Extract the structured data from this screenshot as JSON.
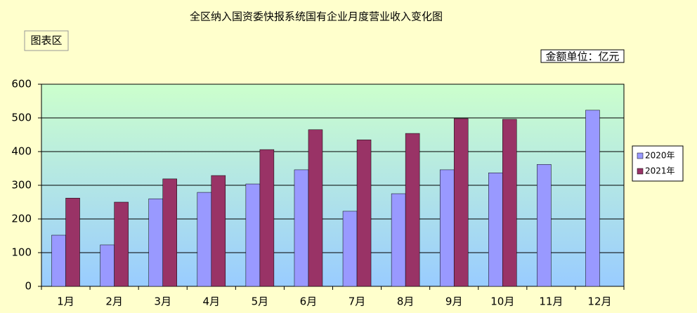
{
  "chart_data": {
    "type": "bar",
    "title": "全区纳入国资委快报系统国有企业月度营业收入变化图",
    "chart_area_label": "图表区",
    "unit_label": "金额单位：亿元",
    "categories": [
      "1月",
      "2月",
      "3月",
      "4月",
      "5月",
      "6月",
      "7月",
      "8月",
      "9月",
      "10月",
      "11月",
      "12月"
    ],
    "series": [
      {
        "name": "2020年",
        "color": "#9999ff",
        "values": [
          152,
          123,
          260,
          279,
          304,
          346,
          223,
          275,
          346,
          337,
          362,
          523
        ]
      },
      {
        "name": "2021年",
        "color": "#993366",
        "values": [
          262,
          250,
          319,
          329,
          406,
          465,
          435,
          454,
          498,
          496,
          null,
          null
        ]
      }
    ],
    "ylim": [
      0,
      600
    ],
    "yticks": [
      0,
      100,
      200,
      300,
      400,
      500,
      600
    ],
    "grid": true
  }
}
